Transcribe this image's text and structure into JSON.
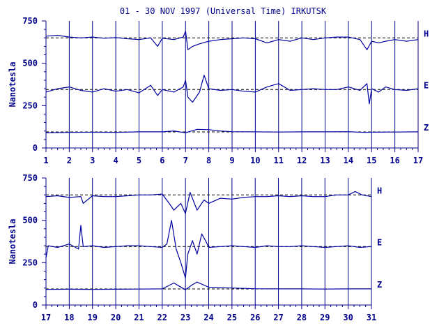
{
  "title": "01 - 30 NOV 1997 (Universal Time) IRKUTSK",
  "colors": {
    "axis": "#00008b",
    "trace": "#0000a0",
    "ref": "#000000",
    "background": "#ffffff"
  },
  "chart_data": [
    {
      "type": "line",
      "ylabel": "Nanotesla",
      "ylim": [
        0,
        750
      ],
      "y_ticks": [
        0,
        250,
        500,
        750
      ],
      "xlim": [
        1,
        17
      ],
      "x_ticks": [
        1,
        2,
        3,
        4,
        5,
        6,
        7,
        8,
        9,
        10,
        11,
        12,
        13,
        14,
        15,
        16,
        17
      ],
      "x_tick_labels": [
        "1",
        "2",
        "3",
        "4",
        "5",
        "6",
        "7",
        "8",
        "9",
        "10",
        "11",
        "12",
        "13",
        "14",
        "15",
        "16",
        "17"
      ],
      "grid": "vertical lines at each day",
      "series": [
        {
          "name": "H",
          "reference": 650,
          "x": [
            1.0,
            1.5,
            2.0,
            2.5,
            3.0,
            3.5,
            4.0,
            4.5,
            5.0,
            5.5,
            5.8,
            6.0,
            6.5,
            6.9,
            7.0,
            7.1,
            7.3,
            7.6,
            8.0,
            8.5,
            9.0,
            9.5,
            10.0,
            10.5,
            11.0,
            11.5,
            12.0,
            12.5,
            13.0,
            13.5,
            14.0,
            14.5,
            14.8,
            15.0,
            15.3,
            15.6,
            16.0,
            16.5,
            17.0
          ],
          "values": [
            660,
            665,
            655,
            650,
            655,
            648,
            652,
            645,
            640,
            650,
            600,
            648,
            640,
            655,
            690,
            580,
            600,
            615,
            630,
            640,
            645,
            650,
            645,
            620,
            640,
            630,
            650,
            640,
            650,
            655,
            655,
            640,
            580,
            630,
            620,
            630,
            640,
            630,
            640
          ]
        },
        {
          "name": "E",
          "reference": 345,
          "x": [
            1.0,
            1.5,
            2.0,
            2.5,
            3.0,
            3.5,
            4.0,
            4.5,
            5.0,
            5.5,
            5.8,
            6.0,
            6.5,
            6.9,
            7.0,
            7.1,
            7.3,
            7.6,
            7.8,
            8.0,
            8.5,
            9.0,
            9.5,
            10.0,
            10.5,
            11.0,
            11.5,
            12.0,
            12.5,
            13.0,
            13.5,
            14.0,
            14.5,
            14.8,
            14.9,
            15.0,
            15.3,
            15.6,
            16.0,
            16.5,
            17.0
          ],
          "values": [
            330,
            350,
            360,
            340,
            330,
            350,
            335,
            345,
            325,
            370,
            310,
            345,
            330,
            360,
            400,
            300,
            270,
            330,
            430,
            350,
            340,
            345,
            335,
            330,
            360,
            380,
            340,
            345,
            350,
            345,
            345,
            360,
            340,
            380,
            260,
            350,
            330,
            360,
            345,
            340,
            350
          ]
        },
        {
          "name": "Z",
          "reference": 95,
          "x": [
            1.0,
            2.0,
            3.0,
            4.0,
            5.0,
            6.0,
            6.5,
            7.0,
            7.5,
            8.0,
            8.5,
            9.0,
            10.0,
            11.0,
            12.0,
            13.0,
            14.0,
            14.7,
            15.0,
            16.0,
            17.0
          ],
          "values": [
            90,
            92,
            93,
            92,
            95,
            95,
            100,
            90,
            110,
            108,
            100,
            96,
            95,
            94,
            95,
            95,
            96,
            92,
            93,
            94,
            95
          ]
        }
      ]
    },
    {
      "type": "line",
      "ylabel": "Nanotesla",
      "ylim": [
        0,
        750
      ],
      "y_ticks": [
        0,
        250,
        500,
        750
      ],
      "xlim": [
        17,
        31
      ],
      "x_ticks": [
        17,
        18,
        19,
        20,
        21,
        22,
        23,
        24,
        25,
        26,
        27,
        28,
        29,
        30,
        31
      ],
      "x_tick_labels": [
        "17",
        "18",
        "19",
        "20",
        "21",
        "22",
        "23",
        "24",
        "25",
        "26",
        "27",
        "28",
        "29",
        "30",
        "31"
      ],
      "grid": "vertical lines at each day",
      "series": [
        {
          "name": "H",
          "reference": 650,
          "x": [
            17.0,
            17.5,
            18.0,
            18.5,
            18.6,
            19.0,
            19.5,
            20.0,
            20.5,
            21.0,
            21.5,
            22.0,
            22.3,
            22.5,
            22.8,
            23.0,
            23.2,
            23.5,
            23.8,
            24.0,
            24.5,
            25.0,
            25.5,
            26.0,
            26.5,
            27.0,
            27.5,
            28.0,
            28.5,
            29.0,
            29.5,
            30.0,
            30.3,
            30.6,
            31.0
          ],
          "values": [
            640,
            645,
            635,
            640,
            600,
            645,
            640,
            640,
            645,
            650,
            650,
            655,
            600,
            560,
            600,
            540,
            665,
            560,
            620,
            600,
            630,
            625,
            635,
            640,
            640,
            645,
            640,
            645,
            640,
            640,
            650,
            650,
            670,
            650,
            640
          ]
        },
        {
          "name": "E",
          "reference": 345,
          "x": [
            17.0,
            17.1,
            17.5,
            18.0,
            18.4,
            18.5,
            18.6,
            19.0,
            19.5,
            20.0,
            20.5,
            21.0,
            21.5,
            22.0,
            22.2,
            22.4,
            22.6,
            22.8,
            23.0,
            23.1,
            23.3,
            23.5,
            23.7,
            23.9,
            24.0,
            24.5,
            25.0,
            25.5,
            26.0,
            26.5,
            27.0,
            27.5,
            28.0,
            28.5,
            29.0,
            29.5,
            30.0,
            30.5,
            31.0
          ],
          "values": [
            280,
            350,
            340,
            360,
            330,
            470,
            345,
            350,
            340,
            345,
            350,
            350,
            345,
            340,
            360,
            500,
            330,
            250,
            160,
            300,
            380,
            300,
            420,
            370,
            340,
            345,
            350,
            345,
            340,
            350,
            345,
            345,
            350,
            345,
            340,
            345,
            350,
            340,
            345
          ]
        },
        {
          "name": "Z",
          "reference": 95,
          "x": [
            17.0,
            18.0,
            19.0,
            20.0,
            21.0,
            22.0,
            22.5,
            23.0,
            23.3,
            23.5,
            24.0,
            25.0,
            26.0,
            27.0,
            28.0,
            29.0,
            30.0,
            31.0
          ],
          "values": [
            92,
            93,
            92,
            93,
            94,
            95,
            130,
            90,
            120,
            135,
            105,
            100,
            96,
            95,
            95,
            94,
            95,
            95
          ]
        }
      ]
    }
  ]
}
